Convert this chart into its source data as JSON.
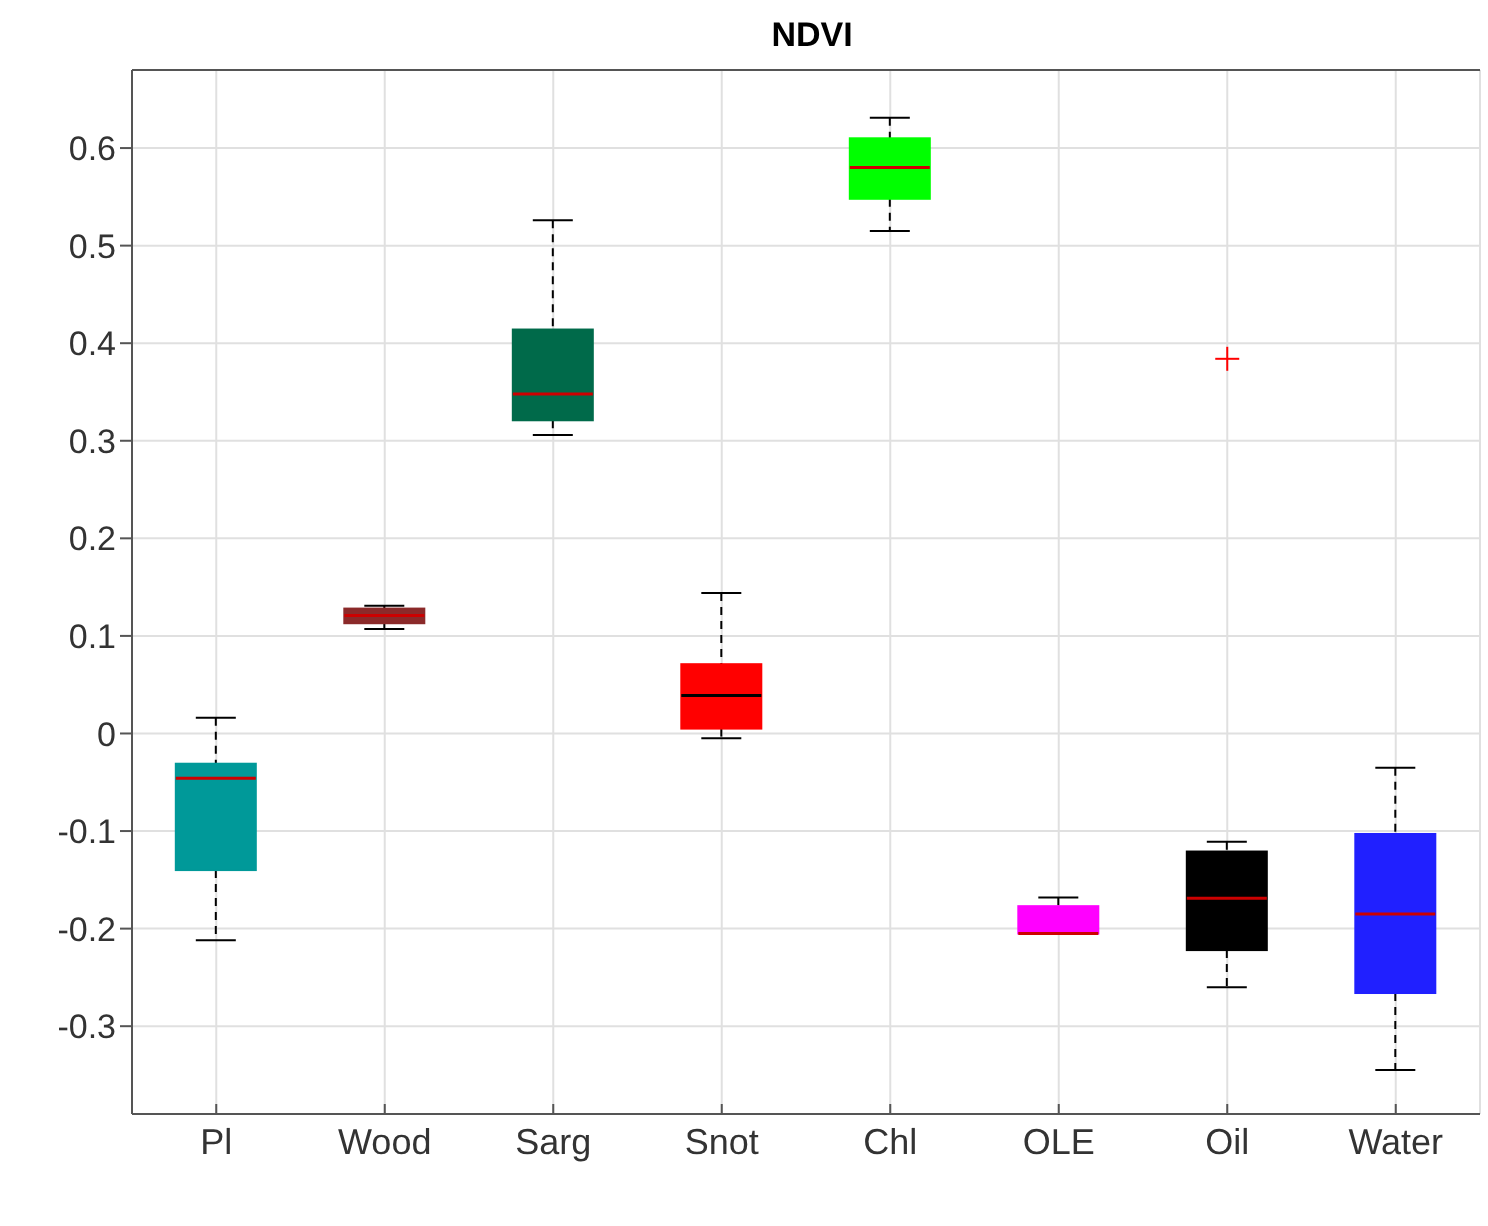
{
  "chart_data": {
    "type": "box",
    "title": "NDVI",
    "categories": [
      "Pl",
      "Wood",
      "Sarg",
      "Snot",
      "Chl",
      "OLE",
      "Oil",
      "Water"
    ],
    "colors": [
      "#009999",
      "#8b2a2a",
      "#006a4a",
      "#ff0000",
      "#00ff00",
      "#ff00ff",
      "#000000",
      "#2020ff"
    ],
    "boxes": [
      {
        "low": -0.212,
        "q1": -0.14,
        "median": -0.046,
        "q3": -0.031,
        "high": 0.016
      },
      {
        "low": 0.107,
        "q1": 0.113,
        "median": 0.121,
        "q3": 0.128,
        "high": 0.131
      },
      {
        "low": 0.306,
        "q1": 0.321,
        "median": 0.348,
        "q3": 0.414,
        "high": 0.526
      },
      {
        "low": -0.005,
        "q1": 0.005,
        "median": 0.039,
        "q3": 0.071,
        "high": 0.144
      },
      {
        "low": 0.515,
        "q1": 0.548,
        "median": 0.58,
        "q3": 0.61,
        "high": 0.631
      },
      {
        "low": -0.205,
        "q1": -0.205,
        "median": -0.205,
        "q3": -0.177,
        "high": -0.168
      },
      {
        "low": -0.26,
        "q1": -0.222,
        "median": -0.169,
        "q3": -0.121,
        "high": -0.111,
        "outliers": [
          0.384
        ]
      },
      {
        "low": -0.345,
        "q1": -0.266,
        "median": -0.185,
        "q3": -0.103,
        "high": -0.035
      }
    ],
    "ylim": [
      -0.39,
      0.68
    ],
    "yticks": [
      -0.3,
      -0.2,
      -0.1,
      0,
      0.1,
      0.2,
      0.3,
      0.4,
      0.5,
      0.6
    ],
    "grid": true
  }
}
